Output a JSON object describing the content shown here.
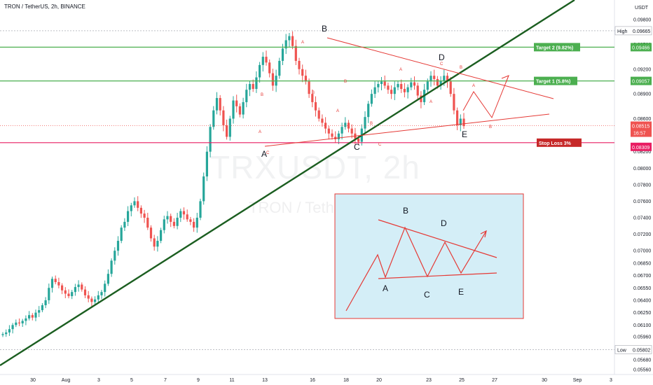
{
  "header": {
    "title": "TRON / TetherUS, 2h, BINANCE"
  },
  "watermark": {
    "symbol": "TRXUSDT, 2h",
    "name": "TRON / TetherUS"
  },
  "currency": "USDT",
  "colors": {
    "up": "#26a69a",
    "down": "#ef5350",
    "green_line": "#4caf50",
    "stop_line": "#e91e63",
    "trend": "#1b5e20",
    "pattern": "#e53935",
    "inset_bg": "#d4eef7"
  },
  "chart_data": {
    "type": "candlestick",
    "symbol": "TRXUSDT",
    "interval": "2h",
    "exchange": "BINANCE",
    "ylim": [
      0.055,
      0.099
    ],
    "y_ticks": [
      "0.09800",
      "0.09500",
      "0.09200",
      "0.08900",
      "0.08600",
      "0.08200",
      "0.08000",
      "0.07800",
      "0.07600",
      "0.07400",
      "0.07200",
      "0.07000",
      "0.06850",
      "0.06700",
      "0.06550",
      "0.06400",
      "0.06250",
      "0.06100",
      "0.05960",
      "0.05820",
      "0.05680",
      "0.05560"
    ],
    "x_ticks": [
      "30",
      "Aug",
      "3",
      "5",
      "7",
      "9",
      "11",
      "13",
      "16",
      "18",
      "20",
      "23",
      "25",
      "27",
      "30",
      "Sep",
      "3"
    ],
    "high": {
      "label": "High",
      "value": "0.09665"
    },
    "low": {
      "label": "Low",
      "value": "0.05802"
    },
    "current_price": {
      "value": "0.08515",
      "countdown": "16:57"
    },
    "levels": [
      {
        "name": "Target 2 (9.82%)",
        "value": "0.09466"
      },
      {
        "name": "Target 1 (5.8%)",
        "value": "0.09057"
      },
      {
        "name": "Stop Loss 3%",
        "value": "0.08309"
      }
    ],
    "wave_labels": [
      "A",
      "B",
      "C",
      "D",
      "E"
    ],
    "inset": {
      "title": "",
      "labels": [
        "A",
        "B",
        "C",
        "D",
        "E"
      ]
    },
    "series": [
      {
        "name": "",
        "values": [
          0.0599,
          0.0601,
          0.0605,
          0.061,
          0.0613,
          0.0612,
          0.0615,
          0.0618,
          0.0622,
          0.0619,
          0.0625,
          0.0628,
          0.0634,
          0.064,
          0.0655,
          0.0666,
          0.0662,
          0.0658,
          0.0652,
          0.0648,
          0.0645,
          0.065,
          0.0656,
          0.0659,
          0.0653,
          0.0646,
          0.0642,
          0.0638,
          0.0641,
          0.0646,
          0.065,
          0.066,
          0.0672,
          0.0688,
          0.07,
          0.0712,
          0.0728,
          0.0735,
          0.0748,
          0.0755,
          0.076,
          0.0752,
          0.0745,
          0.074,
          0.0728,
          0.0715,
          0.0705,
          0.0712,
          0.0725,
          0.0738,
          0.0742,
          0.0735,
          0.073,
          0.074,
          0.0748,
          0.0744,
          0.0738,
          0.0735,
          0.0728,
          0.074,
          0.076,
          0.079,
          0.082,
          0.085,
          0.087,
          0.0885,
          0.087,
          0.0852,
          0.0838,
          0.086,
          0.0882,
          0.0875,
          0.0865,
          0.088,
          0.0895,
          0.0902,
          0.0896,
          0.091,
          0.0925,
          0.0935,
          0.0928,
          0.0915,
          0.09,
          0.0912,
          0.093,
          0.0945,
          0.0955,
          0.096,
          0.0948,
          0.093,
          0.092,
          0.0912,
          0.0905,
          0.089,
          0.088,
          0.087,
          0.086,
          0.0855,
          0.0848,
          0.0842,
          0.0838,
          0.0835,
          0.0842,
          0.085,
          0.0855,
          0.0848,
          0.0842,
          0.0836,
          0.0832,
          0.0848,
          0.0862,
          0.0878,
          0.089,
          0.0898,
          0.0902,
          0.0905,
          0.09,
          0.0895,
          0.089,
          0.0898,
          0.0902,
          0.0896,
          0.0892,
          0.0898,
          0.0904,
          0.09,
          0.0888,
          0.088,
          0.0895,
          0.0905,
          0.0912,
          0.0908,
          0.09,
          0.0906,
          0.0912,
          0.0905,
          0.089,
          0.087,
          0.0852,
          0.086,
          0.0851
        ]
      }
    ]
  }
}
